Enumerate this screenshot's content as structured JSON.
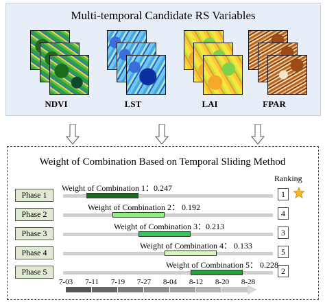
{
  "top": {
    "title": "Multi-temporal Candidate RS Variables",
    "variables": [
      {
        "label": "NDVI"
      },
      {
        "label": "LST"
      },
      {
        "label": "LAI"
      },
      {
        "label": "FPAR"
      }
    ]
  },
  "bottom": {
    "title": "Weight of Combination Based on Temporal Sliding Method",
    "ranking_header": "Ranking",
    "phases": [
      {
        "label": "Phase 1",
        "weight_text": "Weight of Combination 1：0.247",
        "weight": 0.247,
        "rank": "1",
        "start_index": 1,
        "end_index": 3,
        "color": "#1e6a22"
      },
      {
        "label": "Phase 2",
        "weight_text": "Weight of Combination 2： 0.192",
        "weight": 0.192,
        "rank": "4",
        "start_index": 2,
        "end_index": 4,
        "color": "#8ef07a"
      },
      {
        "label": "Phase 3",
        "weight_text": "Weight of Combination 3：0.213",
        "weight": 0.213,
        "rank": "3",
        "start_index": 3,
        "end_index": 5,
        "color": "#34c45a"
      },
      {
        "label": "Phase 4",
        "weight_text": "Weight of Combination 4： 0.133",
        "weight": 0.133,
        "rank": "5",
        "start_index": 4,
        "end_index": 6,
        "color": "#d6f6bc"
      },
      {
        "label": "Phase 5",
        "weight_text": "Weight of Combination 5： 0.228",
        "weight": 0.228,
        "rank": "2",
        "start_index": 5,
        "end_index": 7,
        "color": "#2aa03e"
      }
    ],
    "timeline": [
      "7-03",
      "7-11",
      "7-19",
      "7-27",
      "8-04",
      "8-12",
      "8-20",
      "8-28"
    ],
    "colors": {
      "phase_box": "#dfe9d4",
      "track": "#cfcfcf",
      "star": "#f4b81c"
    }
  }
}
